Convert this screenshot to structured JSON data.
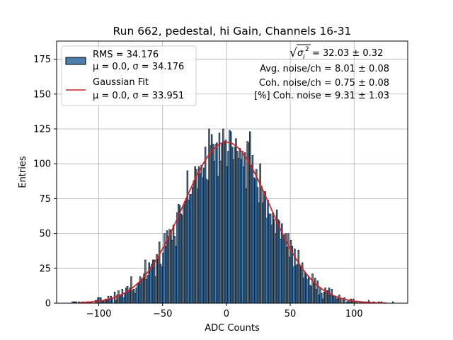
{
  "chart_data": {
    "type": "histogram",
    "title": "Run 662, pedestal, hi Gain, Channels 16-31",
    "xlabel": "ADC Counts",
    "ylabel": "Entries",
    "xlim": [
      -133,
      142
    ],
    "ylim": [
      0,
      188
    ],
    "xticks": [
      -100,
      -50,
      0,
      50,
      100
    ],
    "yticks": [
      0,
      25,
      50,
      75,
      100,
      125,
      150,
      175
    ],
    "grid": true,
    "bin_width": 1,
    "hist_range": [
      -122,
      132
    ],
    "fill_color": "#4a7fb0",
    "edge_color": "#000000",
    "fit_color": "#e31a1c",
    "fit": {
      "mu": 0.0,
      "sigma": 33.951,
      "amplitude": 115.5,
      "x_range": [
        -115,
        125
      ]
    },
    "series": [
      {
        "name": "RMS = 34.176",
        "detail": "μ = 0.0, σ = 34.176",
        "type": "hist"
      },
      {
        "name": "Gaussian Fit",
        "detail": "μ = 0.0, σ = 33.951",
        "type": "line"
      }
    ],
    "legend_position": "upper left",
    "annotations": [
      {
        "prefix": "√",
        "sigma": "σ",
        "sub": "i",
        "sup": "2",
        "rest": " = 32.03 ± 0.32"
      },
      {
        "text": "Avg. noise/ch = 8.01 ± 0.08"
      },
      {
        "text": "Coh. noise/ch = 0.75 ± 0.08"
      },
      {
        "text": "[%] Coh. noise = 9.31 ± 1.03"
      }
    ]
  }
}
